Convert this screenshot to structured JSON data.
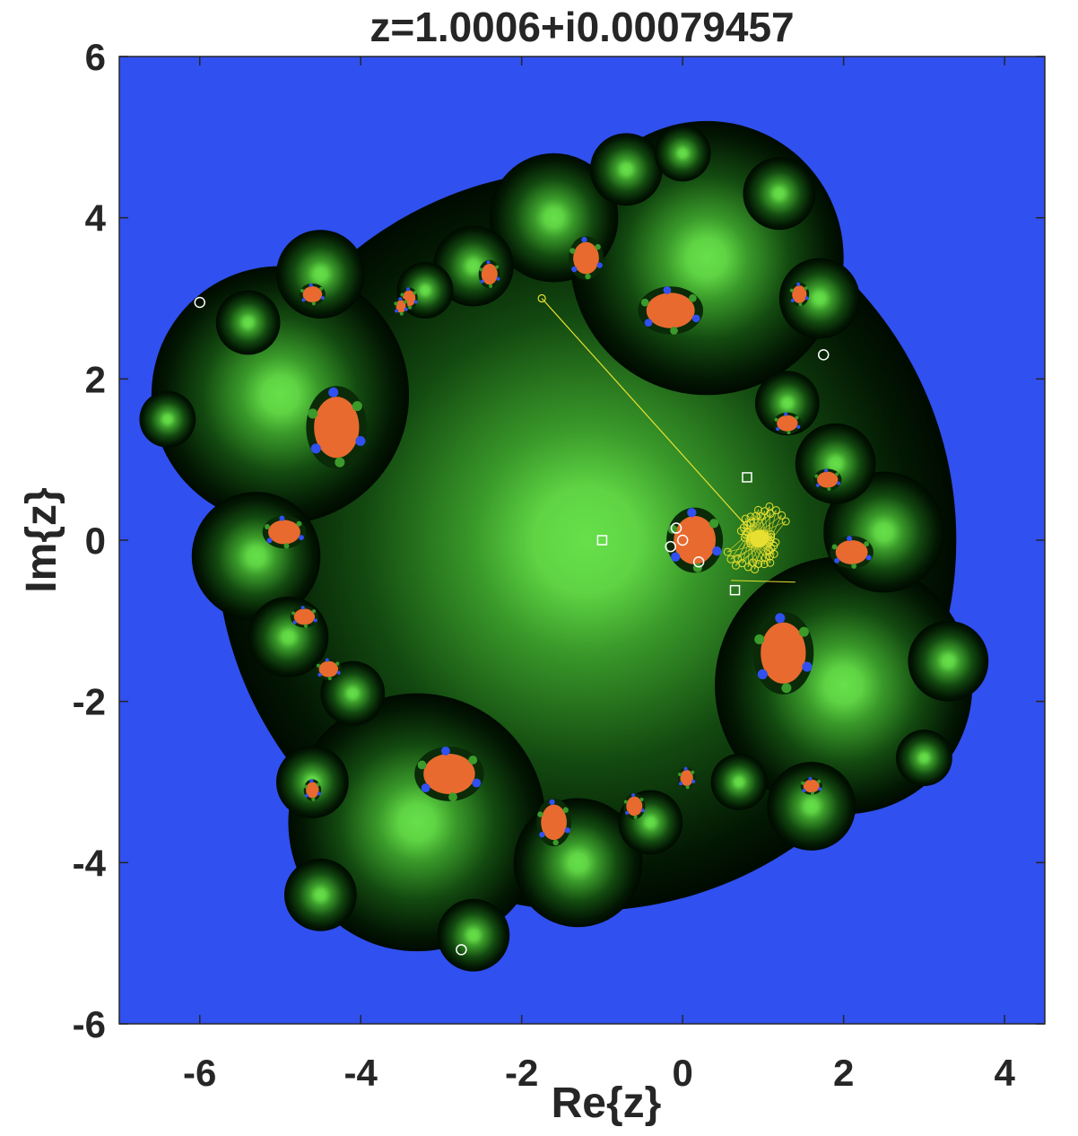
{
  "chart_data": {
    "type": "heatmap",
    "title": "z=1.0006+i0.00079457",
    "xlabel": "Re{z}",
    "ylabel": "Im{z}",
    "xlim": [
      -7,
      4.5
    ],
    "ylim": [
      -6,
      6
    ],
    "xticks": [
      -6,
      -4,
      -2,
      0,
      2,
      4
    ],
    "yticks": [
      -6,
      -4,
      -2,
      0,
      2,
      4,
      6
    ],
    "grid": false,
    "colors": {
      "background": "#3050f0",
      "set_bright": "#66e04a",
      "set_dark": "#001000",
      "basin": "#e86a2e",
      "orbit": "#e8e030",
      "marker": "#ffffff",
      "axis": "#262626"
    },
    "bulbs": [
      {
        "x": -1.2,
        "y": 0.0,
        "r": 4.6
      },
      {
        "x": -5.0,
        "y": 1.8,
        "r": 1.6
      },
      {
        "x": 0.3,
        "y": 3.5,
        "r": 1.7
      },
      {
        "x": 2.0,
        "y": -1.8,
        "r": 1.6
      },
      {
        "x": -3.3,
        "y": -3.5,
        "r": 1.6
      },
      {
        "x": -5.3,
        "y": -0.2,
        "r": 0.8
      },
      {
        "x": 2.5,
        "y": 0.1,
        "r": 0.75
      },
      {
        "x": -1.6,
        "y": 4.0,
        "r": 0.8
      },
      {
        "x": -1.3,
        "y": -4.0,
        "r": 0.8
      },
      {
        "x": -4.5,
        "y": 3.3,
        "r": 0.55
      },
      {
        "x": -2.6,
        "y": 3.4,
        "r": 0.5
      },
      {
        "x": 1.6,
        "y": -3.3,
        "r": 0.55
      },
      {
        "x": 3.3,
        "y": -1.5,
        "r": 0.5
      },
      {
        "x": -4.9,
        "y": -1.2,
        "r": 0.5
      },
      {
        "x": 1.9,
        "y": 0.95,
        "r": 0.5
      },
      {
        "x": -2.6,
        "y": -4.9,
        "r": 0.45
      },
      {
        "x": -0.7,
        "y": 4.6,
        "r": 0.45
      },
      {
        "x": 1.2,
        "y": 4.3,
        "r": 0.45
      },
      {
        "x": 1.7,
        "y": 3.0,
        "r": 0.5
      },
      {
        "x": -6.4,
        "y": 1.5,
        "r": 0.35
      },
      {
        "x": -4.5,
        "y": -4.4,
        "r": 0.45
      },
      {
        "x": -0.4,
        "y": -3.5,
        "r": 0.4
      },
      {
        "x": 3.0,
        "y": -2.7,
        "r": 0.35
      },
      {
        "x": -4.6,
        "y": -3.0,
        "r": 0.45
      },
      {
        "x": 1.3,
        "y": 1.7,
        "r": 0.4
      },
      {
        "x": -5.4,
        "y": 2.7,
        "r": 0.4
      },
      {
        "x": 0.0,
        "y": 4.8,
        "r": 0.35
      },
      {
        "x": -3.2,
        "y": 3.1,
        "r": 0.35
      },
      {
        "x": -4.1,
        "y": -1.9,
        "r": 0.4
      },
      {
        "x": 0.7,
        "y": -3.0,
        "r": 0.35
      }
    ],
    "basins": [
      {
        "x": -4.3,
        "y": 1.4,
        "rx": 0.28,
        "ry": 0.38
      },
      {
        "x": -1.2,
        "y": 3.5,
        "rx": 0.16,
        "ry": 0.2
      },
      {
        "x": -0.15,
        "y": 2.85,
        "rx": 0.3,
        "ry": 0.22
      },
      {
        "x": 0.15,
        "y": 0.0,
        "rx": 0.26,
        "ry": 0.3
      },
      {
        "x": 1.25,
        "y": -1.4,
        "rx": 0.28,
        "ry": 0.38
      },
      {
        "x": -2.9,
        "y": -2.9,
        "rx": 0.32,
        "ry": 0.25
      },
      {
        "x": -1.6,
        "y": -3.5,
        "rx": 0.16,
        "ry": 0.22
      },
      {
        "x": -4.95,
        "y": 0.1,
        "rx": 0.2,
        "ry": 0.15
      },
      {
        "x": 2.1,
        "y": -0.15,
        "rx": 0.2,
        "ry": 0.15
      },
      {
        "x": -4.6,
        "y": 3.05,
        "rx": 0.12,
        "ry": 0.1
      },
      {
        "x": -2.4,
        "y": 3.3,
        "rx": 0.1,
        "ry": 0.13
      },
      {
        "x": -4.7,
        "y": -0.95,
        "rx": 0.13,
        "ry": 0.1
      },
      {
        "x": -4.4,
        "y": -1.6,
        "rx": 0.12,
        "ry": 0.1
      },
      {
        "x": -3.4,
        "y": 3.0,
        "rx": 0.08,
        "ry": 0.1
      },
      {
        "x": 1.3,
        "y": 1.45,
        "rx": 0.13,
        "ry": 0.1
      },
      {
        "x": 1.8,
        "y": 0.75,
        "rx": 0.13,
        "ry": 0.1
      },
      {
        "x": 1.45,
        "y": 3.05,
        "rx": 0.09,
        "ry": 0.11
      },
      {
        "x": -0.6,
        "y": -3.3,
        "rx": 0.1,
        "ry": 0.12
      },
      {
        "x": 0.05,
        "y": -2.95,
        "rx": 0.08,
        "ry": 0.1
      },
      {
        "x": 1.6,
        "y": -3.05,
        "rx": 0.1,
        "ry": 0.08
      },
      {
        "x": -4.6,
        "y": -3.1,
        "rx": 0.08,
        "ry": 0.1
      },
      {
        "x": -3.5,
        "y": 2.9,
        "rx": 0.06,
        "ry": 0.08
      }
    ],
    "orbit_points": [
      {
        "x": -1.75,
        "y": 3.0
      },
      {
        "x": 0.95,
        "y": 0.0
      }
    ],
    "orbit_cloud_center": {
      "x": 0.95,
      "y": 0.02
    },
    "orbit_cloud_radius": 0.45,
    "square_markers": [
      {
        "x": -1.0,
        "y": 0.0
      },
      {
        "x": 0.8,
        "y": 0.78
      },
      {
        "x": 0.65,
        "y": -0.62
      }
    ],
    "circle_markers": [
      {
        "x": -6.0,
        "y": 2.95
      },
      {
        "x": 1.75,
        "y": 2.3
      },
      {
        "x": -2.75,
        "y": -5.08
      },
      {
        "x": -0.08,
        "y": 0.15
      },
      {
        "x": -0.15,
        "y": -0.08
      },
      {
        "x": 0.2,
        "y": -0.27
      },
      {
        "x": 0.0,
        "y": 0.0
      }
    ]
  }
}
